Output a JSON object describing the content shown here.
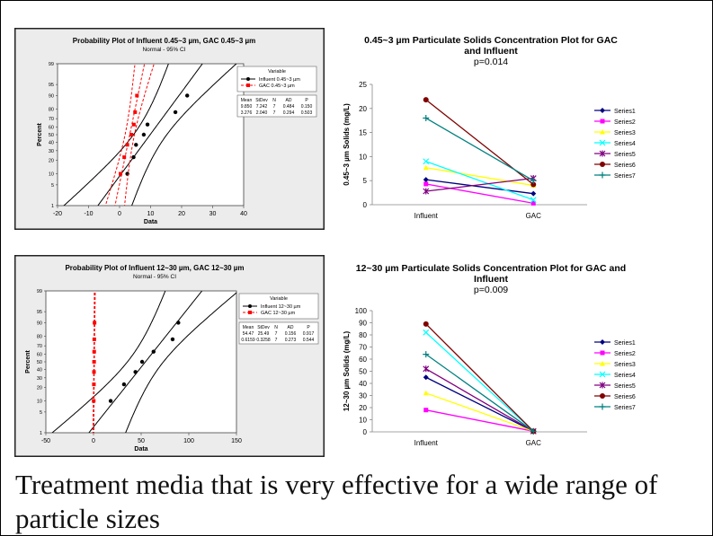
{
  "caption": "Treatment media that is very effective for a wide range of particle sizes",
  "chart_data": [
    {
      "type": "scatter",
      "title": "Probability Plot of Influent 0.45~3 µm, GAC 0.45~3 µm",
      "subtitle": "Normal - 95% CI",
      "xlabel": "Data",
      "ylabel": "Percent",
      "xlim": [
        -20,
        40
      ],
      "xticks": [
        "-20",
        "-10",
        "0",
        "10",
        "20",
        "30",
        "40"
      ],
      "yticks": [
        "1",
        "5",
        "10",
        "20",
        "30",
        "40",
        "50",
        "60",
        "70",
        "80",
        "90",
        "95",
        "99"
      ],
      "legend_title": "Variable",
      "series": [
        {
          "name": "Influent 0.45~3 µm",
          "color": "#000000",
          "mean": 9.85,
          "sd": 7.242,
          "points": [
            [
              2.5,
              10
            ],
            [
              4.5,
              23
            ],
            [
              5.3,
              37
            ],
            [
              7.8,
              50
            ],
            [
              9.0,
              63
            ],
            [
              18.0,
              77
            ],
            [
              21.8,
              90
            ]
          ]
        },
        {
          "name": "GAC 0.45~3 µm",
          "color": "#ff0000",
          "mean": 3.276,
          "sd": 2.04,
          "points": [
            [
              0.3,
              10
            ],
            [
              1.5,
              23
            ],
            [
              2.5,
              37
            ],
            [
              3.8,
              50
            ],
            [
              4.6,
              63
            ],
            [
              5.0,
              77
            ],
            [
              5.6,
              90
            ]
          ]
        }
      ],
      "stats_table": {
        "header": [
          "Mean",
          "StDev",
          "N",
          "AD",
          "P"
        ],
        "rows": [
          [
            "9.850",
            "7.242",
            "7",
            "0.484",
            "0.150"
          ],
          [
            "3.276",
            "2.040",
            "7",
            "0.294",
            "0.503"
          ]
        ]
      }
    },
    {
      "type": "line",
      "title": "0.45~3 µm Particulate Solids Concentration Plot for GAC and Influent",
      "subtitle": "p=0.014",
      "ylabel": "0.45~3 µm Solids (mg/L)",
      "categories": [
        "Influent",
        "GAC"
      ],
      "ylim": [
        0,
        25
      ],
      "yticks": [
        "0",
        "5",
        "10",
        "15",
        "20",
        "25"
      ],
      "legend_position": "right",
      "series": [
        {
          "name": "Series1",
          "color": "#000080",
          "marker": "diamond",
          "values": [
            5.2,
            2.3
          ]
        },
        {
          "name": "Series2",
          "color": "#ff00ff",
          "marker": "square",
          "values": [
            4.3,
            0.3
          ]
        },
        {
          "name": "Series3",
          "color": "#ffff00",
          "marker": "triangle",
          "values": [
            7.7,
            4.0
          ]
        },
        {
          "name": "Series4",
          "color": "#00ffff",
          "marker": "x",
          "values": [
            9.0,
            1.0
          ]
        },
        {
          "name": "Series5",
          "color": "#800080",
          "marker": "star",
          "values": [
            2.8,
            5.5
          ]
        },
        {
          "name": "Series6",
          "color": "#800000",
          "marker": "circle",
          "values": [
            21.8,
            4.2
          ]
        },
        {
          "name": "Series7",
          "color": "#008080",
          "marker": "plus",
          "values": [
            18.0,
            5.0
          ]
        }
      ]
    },
    {
      "type": "scatter",
      "title": "Probability Plot of Influent 12~30 µm, GAC 12~30 µm",
      "subtitle": "Normal - 95% CI",
      "xlabel": "Data",
      "ylabel": "Percent",
      "xlim": [
        -50,
        150
      ],
      "xticks": [
        "-50",
        "0",
        "50",
        "100",
        "150"
      ],
      "yticks": [
        "1",
        "5",
        "10",
        "20",
        "30",
        "40",
        "50",
        "60",
        "70",
        "80",
        "90",
        "95",
        "99"
      ],
      "legend_title": "Variable",
      "series": [
        {
          "name": "Influent 12~30 µm",
          "color": "#000000",
          "mean": 54.47,
          "sd": 25.49,
          "points": [
            [
              18,
              10
            ],
            [
              32,
              23
            ],
            [
              44,
              37
            ],
            [
              51,
              50
            ],
            [
              63,
              63
            ],
            [
              83,
              77
            ],
            [
              89,
              90
            ]
          ]
        },
        {
          "name": "GAC 12~30 µm",
          "color": "#ff0000",
          "mean": 0.6159,
          "sd": 0.3258,
          "points": [
            [
              0.2,
              10
            ],
            [
              0.4,
              23
            ],
            [
              0.5,
              37
            ],
            [
              0.6,
              50
            ],
            [
              0.7,
              63
            ],
            [
              0.8,
              77
            ],
            [
              1.1,
              90
            ]
          ]
        }
      ],
      "stats_table": {
        "header": [
          "Mean",
          "StDev",
          "N",
          "AD",
          "P"
        ],
        "rows": [
          [
            "54.47",
            "25.49",
            "7",
            "0.156",
            "0.917"
          ],
          [
            "0.6159",
            "0.3258",
            "7",
            "0.273",
            "0.544"
          ]
        ]
      }
    },
    {
      "type": "line",
      "title": "12~30 µm Particulate Solids Concentration Plot for GAC and Influent",
      "subtitle": "p=0.009",
      "ylabel": "12~30 µm Solids (mg/L)",
      "categories": [
        "Influent",
        "GAC"
      ],
      "ylim": [
        0,
        100
      ],
      "yticks": [
        "0",
        "10",
        "20",
        "30",
        "40",
        "50",
        "60",
        "70",
        "80",
        "90",
        "100"
      ],
      "legend_position": "right",
      "series": [
        {
          "name": "Series1",
          "color": "#000080",
          "marker": "diamond",
          "values": [
            45,
            0.5
          ]
        },
        {
          "name": "Series2",
          "color": "#ff00ff",
          "marker": "square",
          "values": [
            18,
            0.5
          ]
        },
        {
          "name": "Series3",
          "color": "#ffff00",
          "marker": "triangle",
          "values": [
            32,
            0.5
          ]
        },
        {
          "name": "Series4",
          "color": "#00ffff",
          "marker": "x",
          "values": [
            82,
            0.5
          ]
        },
        {
          "name": "Series5",
          "color": "#800080",
          "marker": "star",
          "values": [
            52,
            0.5
          ]
        },
        {
          "name": "Series6",
          "color": "#800000",
          "marker": "circle",
          "values": [
            89,
            0.5
          ]
        },
        {
          "name": "Series7",
          "color": "#008080",
          "marker": "plus",
          "values": [
            64,
            0.5
          ]
        }
      ]
    }
  ]
}
